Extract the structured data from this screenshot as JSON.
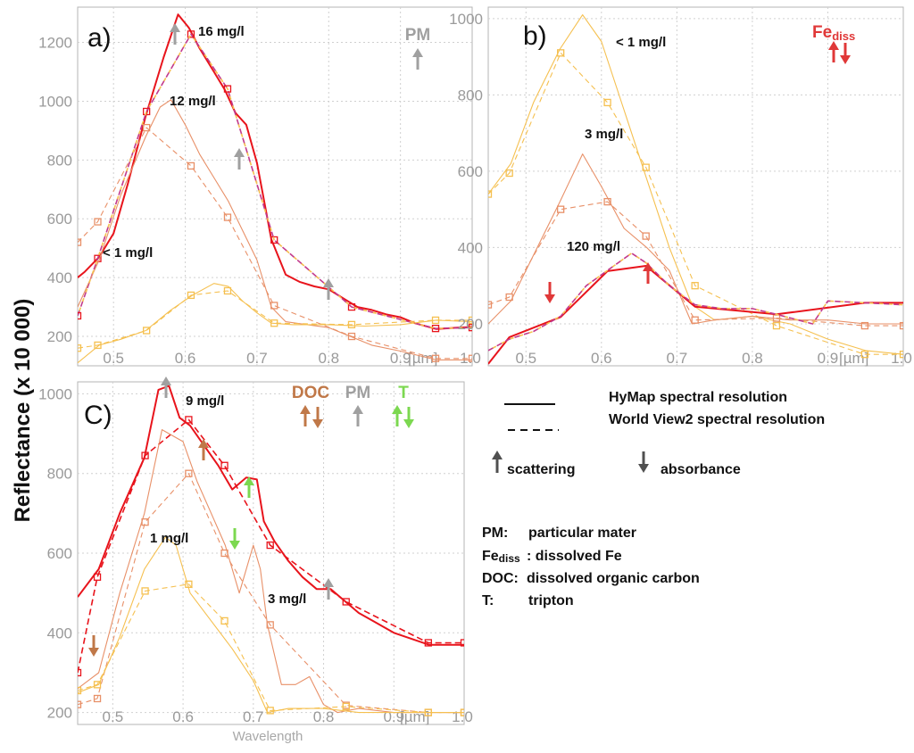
{
  "figure": {
    "ylabel": "Reflectance (x 10 000)",
    "unit_label": "[µm]",
    "x_end_label": "1.0",
    "wavelength_label": "Wavelength",
    "legend": {
      "solid": "HyMap spectral resolution",
      "dashed": "World View2 spectral resolution",
      "scattering": "scattering",
      "absorbance": "absorbance",
      "abbrev": [
        {
          "abbr": "PM:",
          "text": "particular mater"
        },
        {
          "abbr": "Fediss",
          "text": ": dissolved  Fe"
        },
        {
          "abbr": "DOC:",
          "text": "dissolved organic carbon"
        },
        {
          "abbr": "T:",
          "text": "tripton"
        }
      ]
    },
    "colors": {
      "red": "#e8141c",
      "orange": "#e89068",
      "yellow": "#f5c050",
      "magenta": "#c23a8c",
      "gray": "#a0a0a0",
      "brown": "#c07848",
      "green": "#7cd850",
      "fe": "#e03838"
    }
  },
  "chart_data": [
    {
      "panel": "a)",
      "type": "line",
      "xlabel": "Wavelength [µm]",
      "ylabel": "Reflectance (x 10 000)",
      "xlim": [
        0.45,
        1.0
      ],
      "ylim": [
        100,
        1320
      ],
      "xticks": [
        "0.5",
        "0.6",
        "0.7",
        "0.8",
        "0.9"
      ],
      "yticks": [
        "200",
        "400",
        "600",
        "800",
        "1000",
        "1200"
      ],
      "indicators": [
        {
          "label": "PM",
          "color": "#a0a0a0"
        }
      ],
      "annotations": [
        "16 mg/l",
        "12 mg/l",
        "< 1 mg/l"
      ],
      "series": [
        {
          "name": "16 mg/l HyMap",
          "color": "#e8141c",
          "style": "solid",
          "width": 2,
          "x": [
            0.45,
            0.46,
            0.48,
            0.5,
            0.52,
            0.545,
            0.57,
            0.59,
            0.605,
            0.62,
            0.64,
            0.655,
            0.67,
            0.685,
            0.7,
            0.72,
            0.74,
            0.76,
            0.78,
            0.8,
            0.82,
            0.84,
            0.86,
            0.88,
            0.9,
            0.92,
            0.95,
            0.98,
            1.0
          ],
          "y": [
            400,
            420,
            470,
            550,
            720,
            950,
            1150,
            1295,
            1250,
            1180,
            1100,
            1040,
            960,
            920,
            790,
            530,
            410,
            385,
            370,
            360,
            330,
            300,
            290,
            275,
            265,
            245,
            225,
            230,
            232
          ]
        },
        {
          "name": "16 mg/l WorldView2",
          "color": "#c23a8c",
          "style": "dashed",
          "width": 1.6,
          "markers": true,
          "x": [
            0.45,
            0.478,
            0.546,
            0.608,
            0.659,
            0.724,
            0.832,
            0.949,
            1.0
          ],
          "y": [
            270,
            465,
            965,
            1228,
            1042,
            528,
            300,
            227,
            230
          ]
        },
        {
          "name": "12 mg/l HyMap",
          "color": "#e89068",
          "style": "solid",
          "width": 1.1,
          "x": [
            0.45,
            0.48,
            0.51,
            0.545,
            0.565,
            0.58,
            0.6,
            0.62,
            0.64,
            0.66,
            0.68,
            0.7,
            0.72,
            0.74,
            0.77,
            0.8,
            0.83,
            0.86,
            0.9,
            0.95,
            1.0
          ],
          "y": [
            300,
            460,
            680,
            880,
            980,
            1005,
            920,
            820,
            740,
            660,
            560,
            460,
            300,
            250,
            240,
            230,
            200,
            170,
            150,
            120,
            120
          ]
        },
        {
          "name": "12 mg/l WorldView2",
          "color": "#e89068",
          "style": "dashed",
          "width": 1.1,
          "markers": true,
          "x": [
            0.45,
            0.478,
            0.546,
            0.608,
            0.659,
            0.724,
            0.832,
            0.949,
            1.0
          ],
          "y": [
            520,
            590,
            910,
            780,
            605,
            305,
            200,
            125,
            125
          ]
        },
        {
          "name": "< 1 mg/l HyMap",
          "color": "#f5c050",
          "style": "solid",
          "width": 1.1,
          "x": [
            0.45,
            0.48,
            0.51,
            0.545,
            0.58,
            0.61,
            0.64,
            0.66,
            0.68,
            0.7,
            0.72,
            0.75,
            0.8,
            0.85,
            0.9,
            0.95,
            1.0
          ],
          "y": [
            110,
            170,
            190,
            220,
            290,
            340,
            380,
            370,
            320,
            280,
            245,
            240,
            240,
            235,
            240,
            255,
            250
          ]
        },
        {
          "name": "< 1 mg/l WorldView2",
          "color": "#f5c050",
          "style": "dashed",
          "width": 1.1,
          "markers": true,
          "x": [
            0.45,
            0.478,
            0.546,
            0.608,
            0.659,
            0.724,
            0.832,
            0.949,
            1.0
          ],
          "y": [
            160,
            170,
            220,
            340,
            355,
            245,
            240,
            255,
            255
          ]
        }
      ]
    },
    {
      "panel": "b)",
      "type": "line",
      "xlabel": "Wavelength [µm]",
      "ylabel": "Reflectance (x 10 000)",
      "xlim": [
        0.45,
        1.0
      ],
      "ylim": [
        90,
        1030
      ],
      "xticks": [
        "0.5",
        "0.6",
        "0.7",
        "0.8",
        "0.9"
      ],
      "yticks": [
        "200",
        "400",
        "600",
        "800",
        "1000"
      ],
      "indicators": [
        {
          "label": "Fediss",
          "color": "#e03838"
        }
      ],
      "annotations": [
        "< 1 mg/l",
        "3 mg/l",
        "120 mg/l"
      ],
      "series": [
        {
          "name": "< 1 mg/l HyMap",
          "color": "#f5c050",
          "style": "solid",
          "width": 1.1,
          "x": [
            0.45,
            0.48,
            0.51,
            0.545,
            0.575,
            0.6,
            0.63,
            0.66,
            0.69,
            0.72,
            0.75,
            0.8,
            0.85,
            0.9,
            0.95,
            1.0
          ],
          "y": [
            540,
            620,
            780,
            920,
            1010,
            940,
            760,
            580,
            400,
            250,
            210,
            220,
            200,
            160,
            130,
            120
          ]
        },
        {
          "name": "< 1 mg/l WorldView2",
          "color": "#f5c050",
          "style": "dashed",
          "width": 1.1,
          "markers": true,
          "x": [
            0.45,
            0.478,
            0.546,
            0.608,
            0.659,
            0.724,
            0.832,
            0.949,
            1.0
          ],
          "y": [
            540,
            595,
            910,
            780,
            610,
            300,
            195,
            120,
            120
          ]
        },
        {
          "name": "3 mg/l HyMap",
          "color": "#e89068",
          "style": "solid",
          "width": 1.1,
          "x": [
            0.45,
            0.48,
            0.51,
            0.545,
            0.575,
            0.6,
            0.63,
            0.66,
            0.69,
            0.72,
            0.75,
            0.8,
            0.85,
            0.9,
            0.95,
            1.0
          ],
          "y": [
            200,
            260,
            380,
            520,
            645,
            560,
            450,
            400,
            340,
            200,
            210,
            220,
            210,
            210,
            200,
            200
          ]
        },
        {
          "name": "3 mg/l WorldView2",
          "color": "#e89068",
          "style": "dashed",
          "width": 1.1,
          "markers": true,
          "x": [
            0.45,
            0.478,
            0.546,
            0.608,
            0.659,
            0.724,
            0.832,
            0.949,
            1.0
          ],
          "y": [
            250,
            270,
            500,
            520,
            430,
            210,
            215,
            195,
            195
          ]
        },
        {
          "name": "120 mg/l HyMap",
          "color": "#e8141c",
          "style": "solid",
          "width": 2,
          "x": [
            0.45,
            0.478,
            0.546,
            0.608,
            0.659,
            0.724,
            0.832,
            0.949,
            1.0
          ],
          "y": [
            95,
            165,
            218,
            338,
            352,
            245,
            225,
            255,
            255
          ]
        },
        {
          "name": "120 mg/l WorldView2",
          "color": "#c23a8c",
          "style": "dashed",
          "width": 1.6,
          "x": [
            0.45,
            0.478,
            0.51,
            0.546,
            0.58,
            0.608,
            0.64,
            0.659,
            0.69,
            0.724,
            0.76,
            0.8,
            0.832,
            0.88,
            0.9,
            0.949,
            1.0
          ],
          "y": [
            130,
            160,
            180,
            220,
            300,
            340,
            385,
            360,
            300,
            250,
            240,
            240,
            225,
            200,
            260,
            255,
            250
          ]
        }
      ]
    },
    {
      "panel": "C)",
      "type": "line",
      "xlabel": "Wavelength [µm]",
      "ylabel": "Reflectance (x 10 000)",
      "xlim": [
        0.45,
        1.0
      ],
      "ylim": [
        170,
        1030
      ],
      "xticks": [
        "0.5",
        "0.6",
        "0.7",
        "0.8",
        "0.9"
      ],
      "yticks": [
        "200",
        "400",
        "600",
        "800",
        "1000"
      ],
      "indicators": [
        {
          "label": "DOC",
          "color": "#c07848"
        },
        {
          "label": "PM",
          "color": "#a0a0a0"
        },
        {
          "label": "T",
          "color": "#7cd850"
        }
      ],
      "annotations": [
        "9 mg/l",
        "1 mg/l",
        "3 mg/l"
      ],
      "series": [
        {
          "name": "9 mg/l HyMap",
          "color": "#e8141c",
          "style": "solid",
          "width": 2,
          "x": [
            0.45,
            0.48,
            0.51,
            0.545,
            0.565,
            0.58,
            0.595,
            0.61,
            0.63,
            0.65,
            0.67,
            0.69,
            0.705,
            0.715,
            0.73,
            0.75,
            0.77,
            0.79,
            0.81,
            0.83,
            0.85,
            0.87,
            0.9,
            0.95,
            1.0
          ],
          "y": [
            490,
            560,
            700,
            840,
            1010,
            1020,
            940,
            920,
            870,
            820,
            760,
            790,
            785,
            680,
            630,
            580,
            540,
            510,
            510,
            480,
            450,
            430,
            400,
            370,
            370
          ]
        },
        {
          "name": "9 mg/l WorldView2",
          "color": "#e8141c",
          "style": "dashed",
          "width": 1.6,
          "markers": true,
          "x": [
            0.45,
            0.478,
            0.546,
            0.608,
            0.659,
            0.724,
            0.832,
            0.949,
            1.0
          ],
          "y": [
            300,
            540,
            845,
            935,
            820,
            620,
            478,
            375,
            375
          ]
        },
        {
          "name": "3 mg/l HyMap",
          "color": "#e89068",
          "style": "solid",
          "width": 1.1,
          "x": [
            0.45,
            0.48,
            0.51,
            0.545,
            0.57,
            0.6,
            0.62,
            0.64,
            0.66,
            0.68,
            0.7,
            0.71,
            0.72,
            0.74,
            0.76,
            0.78,
            0.8,
            0.82,
            0.85,
            0.9,
            0.95,
            1.0
          ],
          "y": [
            260,
            300,
            500,
            700,
            910,
            880,
            780,
            700,
            620,
            500,
            620,
            560,
            420,
            270,
            270,
            290,
            220,
            200,
            210,
            200,
            200,
            200
          ]
        },
        {
          "name": "3 mg/l WorldView2",
          "color": "#e89068",
          "style": "dashed",
          "width": 1.1,
          "markers": true,
          "x": [
            0.45,
            0.478,
            0.546,
            0.608,
            0.659,
            0.724,
            0.832,
            0.949,
            1.0
          ],
          "y": [
            220,
            235,
            678,
            800,
            600,
            420,
            218,
            200,
            200
          ]
        },
        {
          "name": "1 mg/l HyMap",
          "color": "#f5c050",
          "style": "solid",
          "width": 1.1,
          "x": [
            0.45,
            0.48,
            0.51,
            0.545,
            0.575,
            0.59,
            0.61,
            0.64,
            0.67,
            0.7,
            0.72,
            0.75,
            0.8,
            0.85,
            0.9,
            0.95,
            1.0
          ],
          "y": [
            250,
            270,
            390,
            560,
            640,
            620,
            500,
            430,
            360,
            280,
            200,
            210,
            210,
            200,
            200,
            200,
            200
          ]
        },
        {
          "name": "1 mg/l WorldView2",
          "color": "#f5c050",
          "style": "dashed",
          "width": 1.1,
          "markers": true,
          "x": [
            0.45,
            0.478,
            0.546,
            0.608,
            0.659,
            0.724,
            0.832,
            0.949,
            1.0
          ],
          "y": [
            255,
            270,
            505,
            522,
            430,
            205,
            215,
            200,
            200
          ]
        }
      ]
    }
  ]
}
